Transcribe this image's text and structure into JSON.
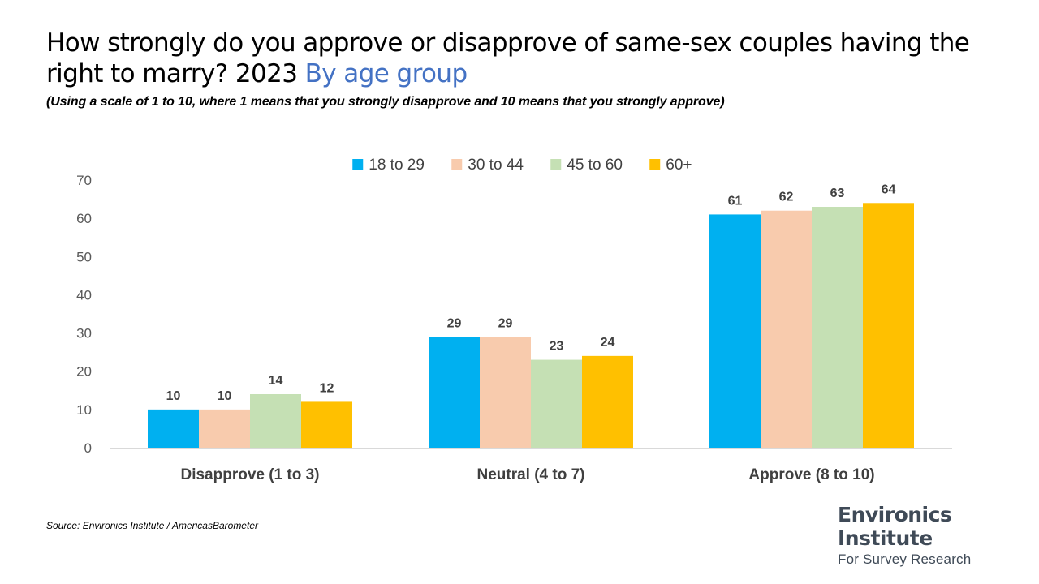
{
  "title": {
    "main": "How strongly do you approve or disapprove of same-sex couples having the right to marry?   2023",
    "highlight": "By age group"
  },
  "subtitle": "(Using a scale of 1 to 10, where 1 means that you strongly disapprove and 10 means that you strongly approve)",
  "source": "Source: Environics Institute / AmericasBarometer",
  "logo": {
    "line1": "Environics",
    "line2": "Institute",
    "line3": "For Survey Research"
  },
  "chart_data": {
    "type": "bar",
    "categories": [
      "Disapprove (1 to 3)",
      "Neutral (4 to 7)",
      "Approve (8 to 10)"
    ],
    "series": [
      {
        "name": "18 to 29",
        "color": "#00b0f0",
        "values": [
          10,
          29,
          61
        ]
      },
      {
        "name": "30 to 44",
        "color": "#f8cbad",
        "values": [
          10,
          29,
          62
        ]
      },
      {
        "name": "45 to 60",
        "color": "#c5e0b4",
        "values": [
          14,
          23,
          63
        ]
      },
      {
        "name": "60+",
        "color": "#ffc000",
        "values": [
          12,
          24,
          64
        ]
      }
    ],
    "ylim": [
      0,
      70
    ],
    "yticks": [
      0,
      10,
      20,
      30,
      40,
      50,
      60,
      70
    ],
    "legend": "top",
    "grid": false
  }
}
